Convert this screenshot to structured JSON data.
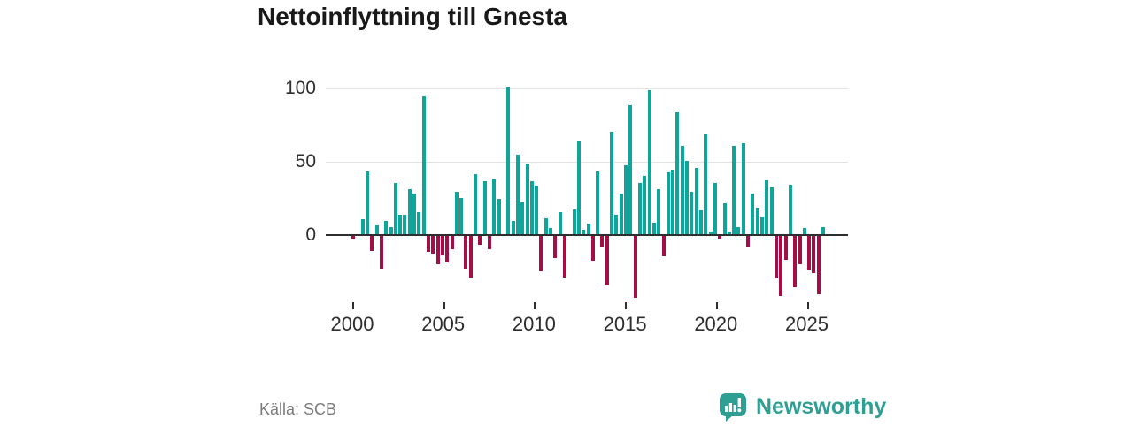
{
  "title": "Nettoinflyttning till Gnesta",
  "source": "Källa: SCB",
  "brand": {
    "name": "Newsworthy",
    "icon": "newsworthy-speech-bubble-chart-icon",
    "color": "#2f9e93"
  },
  "colors": {
    "positive": "#0ea69b",
    "negative": "#a30e45",
    "grid": "#e2e2e2",
    "zero_line": "#2e2e2e",
    "axis_text": "#2e2e2e",
    "title_text": "#191919",
    "source_text": "#7b7b7b"
  },
  "y_axis": {
    "labels": [
      "100",
      "50",
      "0"
    ],
    "values": [
      100,
      50,
      0
    ]
  },
  "x_axis": {
    "labels": [
      "2000",
      "2005",
      "2010",
      "2015",
      "2020",
      "2025"
    ]
  },
  "chart_data": {
    "type": "bar",
    "title": "Nettoinflyttning till Gnesta",
    "xlabel": "",
    "ylabel": "",
    "ylim": [
      -50,
      108
    ],
    "grid": "horizontal",
    "legend": "none",
    "unit": "persons per quarter",
    "x": [
      "2000 Q1",
      "2000 Q2",
      "2000 Q3",
      "2000 Q4",
      "2001 Q1",
      "2001 Q2",
      "2001 Q3",
      "2001 Q4",
      "2002 Q1",
      "2002 Q2",
      "2002 Q3",
      "2002 Q4",
      "2003 Q1",
      "2003 Q2",
      "2003 Q3",
      "2003 Q4",
      "2004 Q1",
      "2004 Q2",
      "2004 Q3",
      "2004 Q4",
      "2005 Q1",
      "2005 Q2",
      "2005 Q3",
      "2005 Q4",
      "2006 Q1",
      "2006 Q2",
      "2006 Q3",
      "2006 Q4",
      "2007 Q1",
      "2007 Q2",
      "2007 Q3",
      "2007 Q4",
      "2008 Q1",
      "2008 Q2",
      "2008 Q3",
      "2008 Q4",
      "2009 Q1",
      "2009 Q2",
      "2009 Q3",
      "2009 Q4",
      "2010 Q1",
      "2010 Q2",
      "2010 Q3",
      "2010 Q4",
      "2011 Q1",
      "2011 Q2",
      "2011 Q3",
      "2011 Q4",
      "2012 Q1",
      "2012 Q2",
      "2012 Q3",
      "2012 Q4",
      "2013 Q1",
      "2013 Q2",
      "2013 Q3",
      "2013 Q4",
      "2014 Q1",
      "2014 Q2",
      "2014 Q3",
      "2014 Q4",
      "2015 Q1",
      "2015 Q2",
      "2015 Q3",
      "2015 Q4",
      "2016 Q1",
      "2016 Q2",
      "2016 Q3",
      "2016 Q4",
      "2017 Q1",
      "2017 Q2",
      "2017 Q3",
      "2017 Q4",
      "2018 Q1",
      "2018 Q2",
      "2018 Q3",
      "2018 Q4",
      "2019 Q1",
      "2019 Q2",
      "2019 Q3",
      "2019 Q4",
      "2020 Q1",
      "2020 Q2",
      "2020 Q3",
      "2020 Q4",
      "2021 Q1",
      "2021 Q2",
      "2021 Q3",
      "2021 Q4",
      "2022 Q1",
      "2022 Q2",
      "2022 Q3",
      "2022 Q4",
      "2023 Q1",
      "2023 Q2",
      "2023 Q3",
      "2023 Q4",
      "2024 Q1",
      "2024 Q2",
      "2024 Q3",
      "2024 Q4",
      "2025 Q1"
    ],
    "values": [
      -2,
      0,
      10,
      43,
      -10,
      6,
      -22,
      9,
      5,
      35,
      13,
      13,
      31,
      28,
      15,
      94,
      -11,
      -12,
      -19,
      -13,
      -18,
      -9,
      29,
      25,
      -22,
      -28,
      41,
      -6,
      36,
      -9,
      38,
      24,
      0,
      100,
      9,
      54,
      22,
      48,
      36,
      33,
      -24,
      11,
      4,
      -15,
      15,
      -28,
      0,
      17,
      63,
      3,
      7,
      -17,
      43,
      -8,
      -34,
      70,
      13,
      28,
      47,
      88,
      -42,
      35,
      40,
      98,
      8,
      31,
      -14,
      42,
      44,
      83,
      60,
      50,
      29,
      45,
      16,
      68,
      2,
      35,
      -2,
      21,
      2,
      60,
      5,
      62,
      -8,
      28,
      18,
      12,
      37,
      32,
      -29,
      -41,
      -16,
      34,
      -35,
      -19,
      4,
      -23,
      -25,
      -40,
      5
    ]
  }
}
